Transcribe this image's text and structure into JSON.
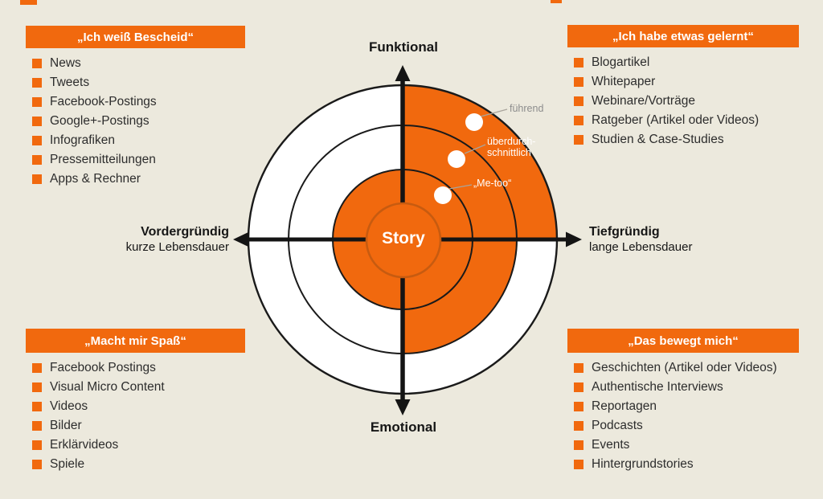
{
  "colors": {
    "background": "#ECE9DD",
    "orange": "#F1690E",
    "orange-dark": "#C75B10",
    "axis-black": "#141414",
    "item-text": "#2D2D2D",
    "annotation-gray": "#8D8D8D",
    "circle-stroke": "#1A1A1A"
  },
  "panels": {
    "top_left": {
      "title": "„Ich weiß Bescheid“",
      "items": [
        "News",
        "Tweets",
        "Facebook-Postings",
        "Google+-Postings",
        "Infografiken",
        "Pressemitteilungen",
        "Apps & Rechner"
      ]
    },
    "top_right": {
      "title": "„Ich habe etwas gelernt“",
      "items": [
        "Blogartikel",
        "Whitepaper",
        "Webinare/Vorträge",
        "Ratgeber (Artikel oder Videos)",
        "Studien & Case-Studies"
      ]
    },
    "bottom_left": {
      "title": "„Macht mir Spaß“",
      "items": [
        "Facebook Postings",
        "Visual Micro Content",
        "Videos",
        "Bilder",
        "Erklärvideos",
        "Spiele"
      ]
    },
    "bottom_right": {
      "title": "„Das bewegt mich“",
      "items": [
        "Geschichten (Artikel oder Videos)",
        "Authentische Interviews",
        "Reportagen",
        "Podcasts",
        "Events",
        "Hintergrundstories"
      ]
    }
  },
  "axes": {
    "top": "Funktional",
    "bottom": "Emotional",
    "left": {
      "label": "Vordergründig",
      "sublabel": "kurze Lebensdauer"
    },
    "right": {
      "label": "Tiefgründig",
      "sublabel": "lange Lebensdauer"
    }
  },
  "center": {
    "label": "Story"
  },
  "annotations": {
    "leading": "führend",
    "above_average_line1": "überdurch-",
    "above_average_line2": "schnittlich",
    "me_too": "„Me-too“"
  }
}
